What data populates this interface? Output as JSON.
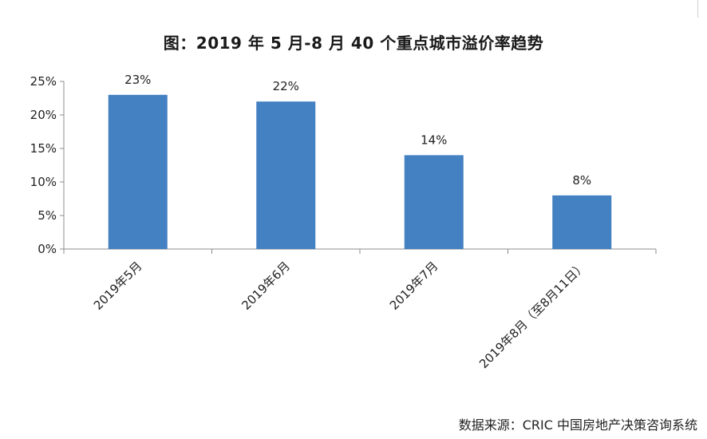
{
  "title": "图：2019 年 5 月-8 月 40 个重点城市溢价率趋势",
  "source": "数据来源：CRIC 中国房地产决策咨询系统",
  "chart_data": {
    "type": "bar",
    "categories": [
      "2019年5月",
      "2019年6月",
      "2019年7月",
      "2019年8月（至8月11日）"
    ],
    "values": [
      23,
      22,
      14,
      8
    ],
    "data_labels": [
      "23%",
      "22%",
      "14%",
      "8%"
    ],
    "yticks": [
      0,
      5,
      10,
      15,
      20,
      25
    ],
    "ytick_labels": [
      "0%",
      "5%",
      "10%",
      "15%",
      "20%",
      "25%"
    ],
    "ylim": [
      0,
      25
    ],
    "xlabel": "",
    "ylabel": "",
    "grid": false,
    "bar_color": "#4381c2"
  }
}
